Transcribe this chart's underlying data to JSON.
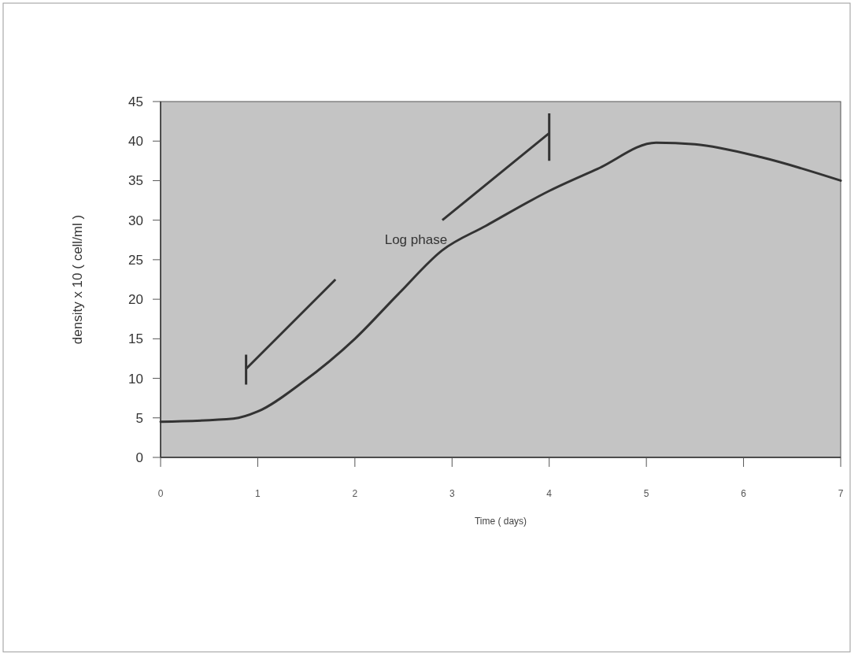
{
  "chart_data": {
    "type": "line",
    "xlabel": "Time ( days)",
    "ylabel": "density x 10 ( cell/ml )",
    "x": [
      0,
      0.75,
      1,
      1.45,
      2,
      2.45,
      2.9,
      3.35,
      4,
      4.5,
      5.1,
      5.5,
      6.2,
      7
    ],
    "series": [
      {
        "color": "#333333",
        "values": [
          4.5,
          4.9,
          5.8,
          9.4,
          15,
          20.7,
          26.2,
          29.3,
          33.7,
          36.5,
          39.8,
          39.6,
          37.9,
          35
        ]
      }
    ],
    "xlim": [
      0,
      7
    ],
    "xticks": [
      0,
      1,
      2,
      3,
      4,
      5,
      6,
      7
    ],
    "ylim": [
      0,
      45
    ],
    "yticks": [
      0,
      5,
      10,
      15,
      20,
      25,
      30,
      35,
      40,
      45
    ],
    "annotations": [
      {
        "text": "Log phase",
        "x": 2.95,
        "y": 27
      }
    ],
    "grid": false,
    "marker": "none",
    "line_style": "solid"
  }
}
